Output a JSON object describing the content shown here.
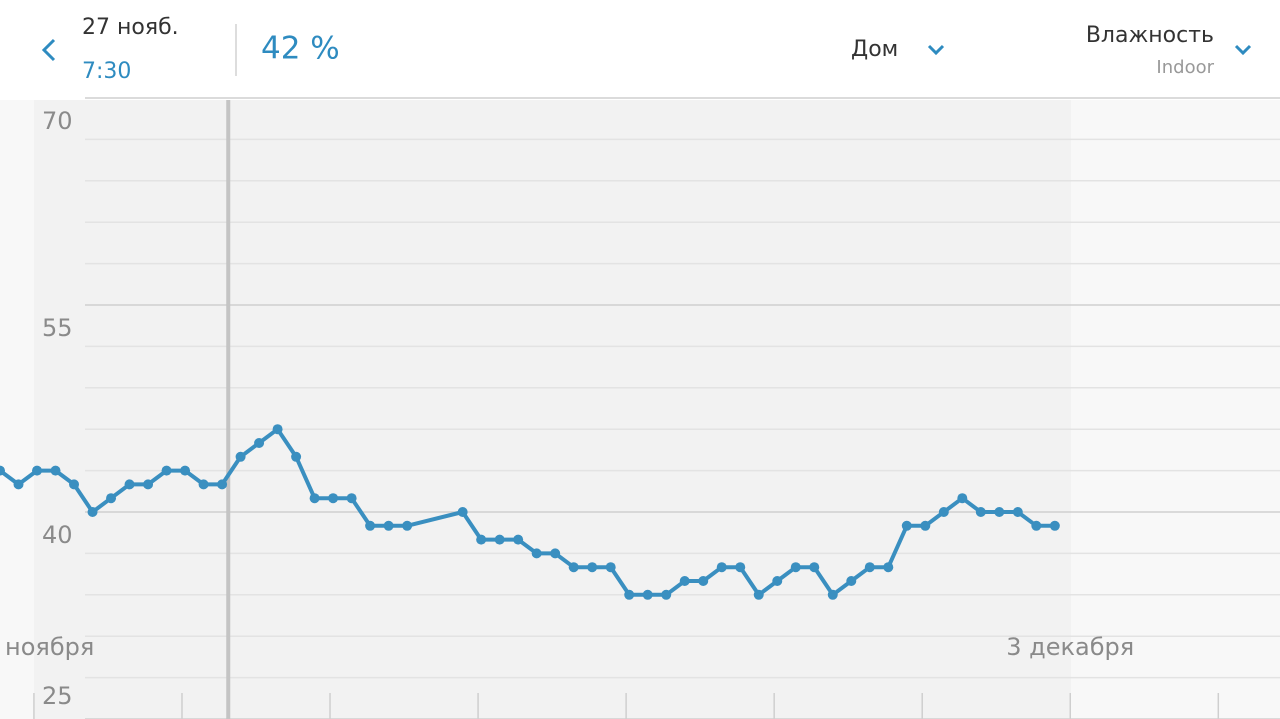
{
  "header": {
    "date": "27 нояб.",
    "time": "7:30",
    "value": "42 %",
    "location": "Дом",
    "metric": "Влажность",
    "source": "Indoor"
  },
  "chart_data": {
    "type": "line",
    "x": [
      -5.5,
      -2.5,
      0.5,
      3.5,
      6.5,
      9.5,
      12.5,
      15.5,
      18.5,
      21.5,
      24.5,
      27.5,
      30.5,
      33.5,
      36.5,
      39.5,
      42.5,
      45.5,
      48.5,
      51.5,
      54.5,
      57.5,
      60.5,
      69.5,
      72.5,
      75.5,
      78.5,
      81.5,
      84.5,
      87.5,
      90.5,
      93.5,
      96.5,
      99.5,
      102.5,
      105.5,
      108.5,
      111.5,
      114.5,
      117.5,
      120.5,
      123.5,
      126.5,
      129.5,
      132.5,
      135.5,
      138.5,
      141.5,
      144.5,
      147.5,
      150.5,
      153.5,
      156.5,
      159.5,
      162.5,
      165.5
    ],
    "series": [
      {
        "name": "Влажность",
        "color": "#3a8fc0",
        "values": [
          43,
          42,
          43,
          43,
          42,
          40,
          41,
          42,
          42,
          43,
          43,
          42,
          42,
          44,
          45,
          46,
          44,
          41,
          41,
          41,
          39,
          39,
          39,
          40,
          38,
          38,
          38,
          37,
          37,
          36,
          36,
          36,
          34,
          34,
          34,
          35,
          35,
          36,
          36,
          34,
          35,
          36,
          36,
          34,
          35,
          36,
          36,
          39,
          39,
          40,
          41,
          40,
          40,
          40,
          39,
          39
        ]
      }
    ],
    "cursor_x": 31.5,
    "xlim": [
      -5.5,
      202
    ],
    "xticks": [
      {
        "value": 0,
        "label": "ноября"
      },
      {
        "value": 24,
        "label": null
      },
      {
        "value": 48,
        "label": null
      },
      {
        "value": 72,
        "label": null
      },
      {
        "value": 96,
        "label": null
      },
      {
        "value": 120,
        "label": null
      },
      {
        "value": 144,
        "label": null
      },
      {
        "value": 168,
        "label": "3 декабря"
      },
      {
        "value": 192,
        "label": null
      }
    ],
    "ylim": [
      25,
      70
    ],
    "yticks": [
      70,
      55,
      40,
      25
    ],
    "minor_yticks": [
      67,
      64,
      61,
      58,
      52,
      49,
      46,
      43,
      37,
      34,
      31,
      28
    ]
  }
}
